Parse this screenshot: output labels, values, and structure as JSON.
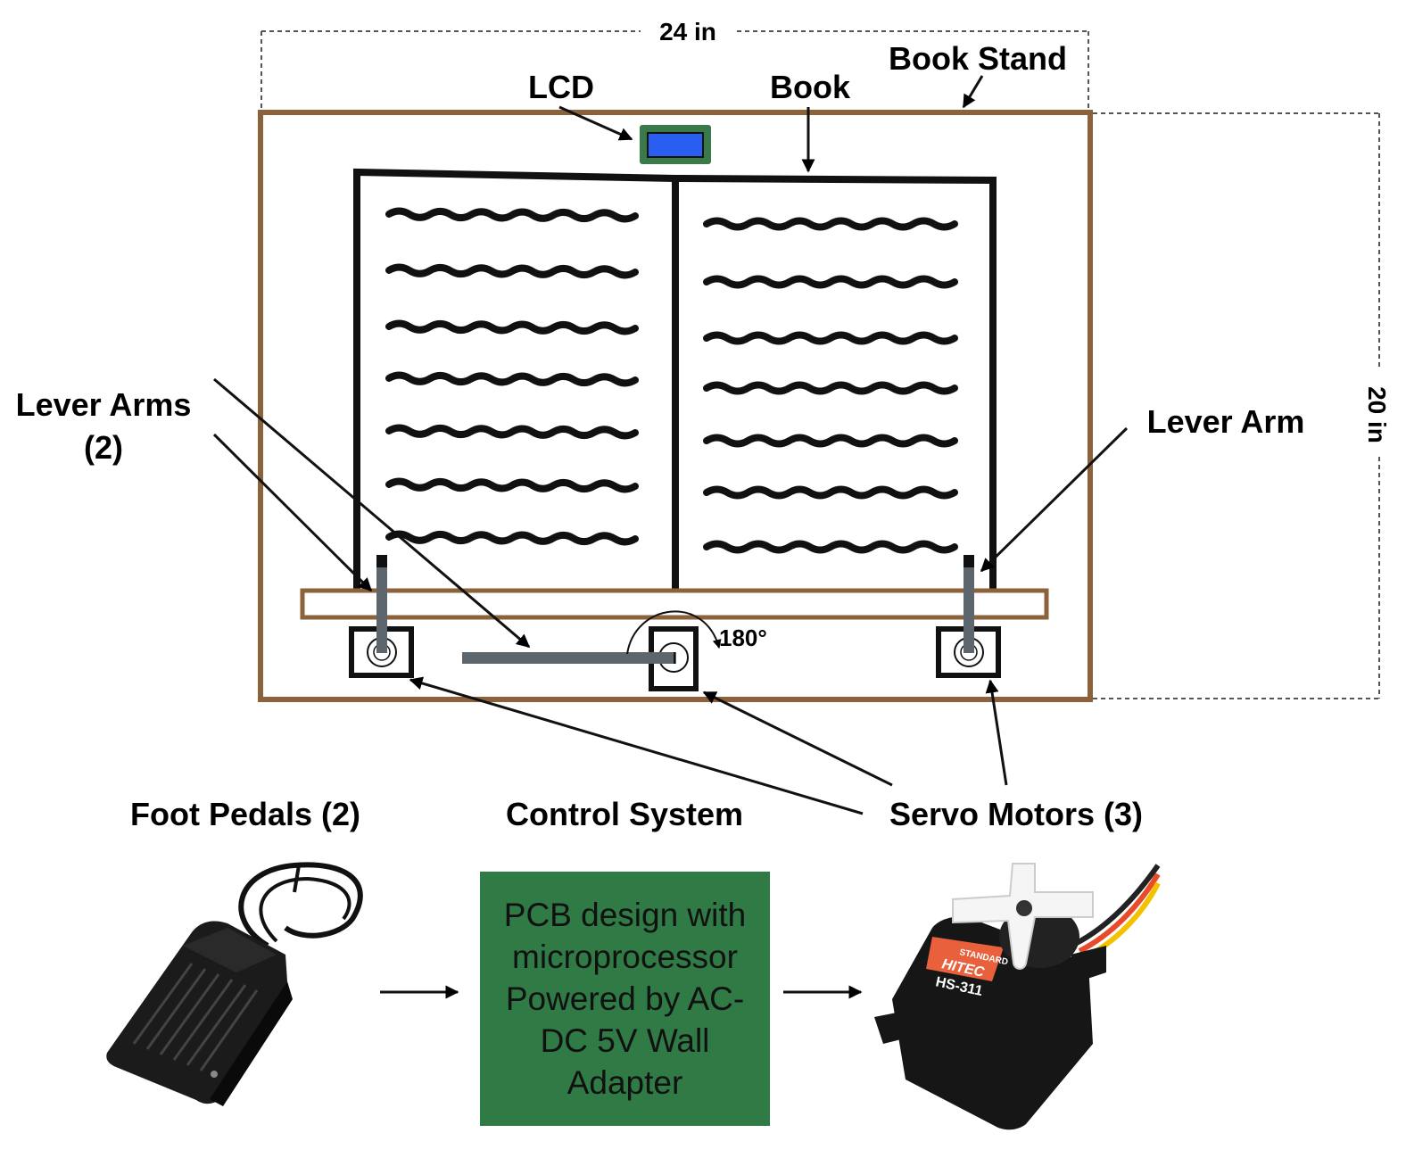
{
  "labels": {
    "width_dimension": "24 in",
    "height_dimension": "20 in",
    "book_stand": "Book Stand",
    "lcd": "LCD",
    "book": "Book",
    "lever_arms_line1": "Lever Arms",
    "lever_arms_line2": "(2)",
    "lever_arm": "Lever Arm",
    "rotation_angle": "180°",
    "foot_pedals": "Foot Pedals (2)",
    "control_system": "Control System",
    "servo_motors": "Servo Motors (3)"
  },
  "control_box": {
    "lines": [
      "PCB design with",
      "microprocessor",
      "Powered by AC-",
      "DC 5V Wall",
      "Adapter"
    ]
  },
  "servo_label": {
    "line1": "STANDARD",
    "line2": "HITEC",
    "line3": "HS-311"
  },
  "colors": {
    "stand_brown": "#8b6239",
    "lcd_frame_green": "#3a7a4a",
    "lcd_screen_blue": "#2a5ef0",
    "lever_gray": "#5d666c",
    "pcb_green": "#2f7a45",
    "servo_orange": "#e8603c"
  }
}
